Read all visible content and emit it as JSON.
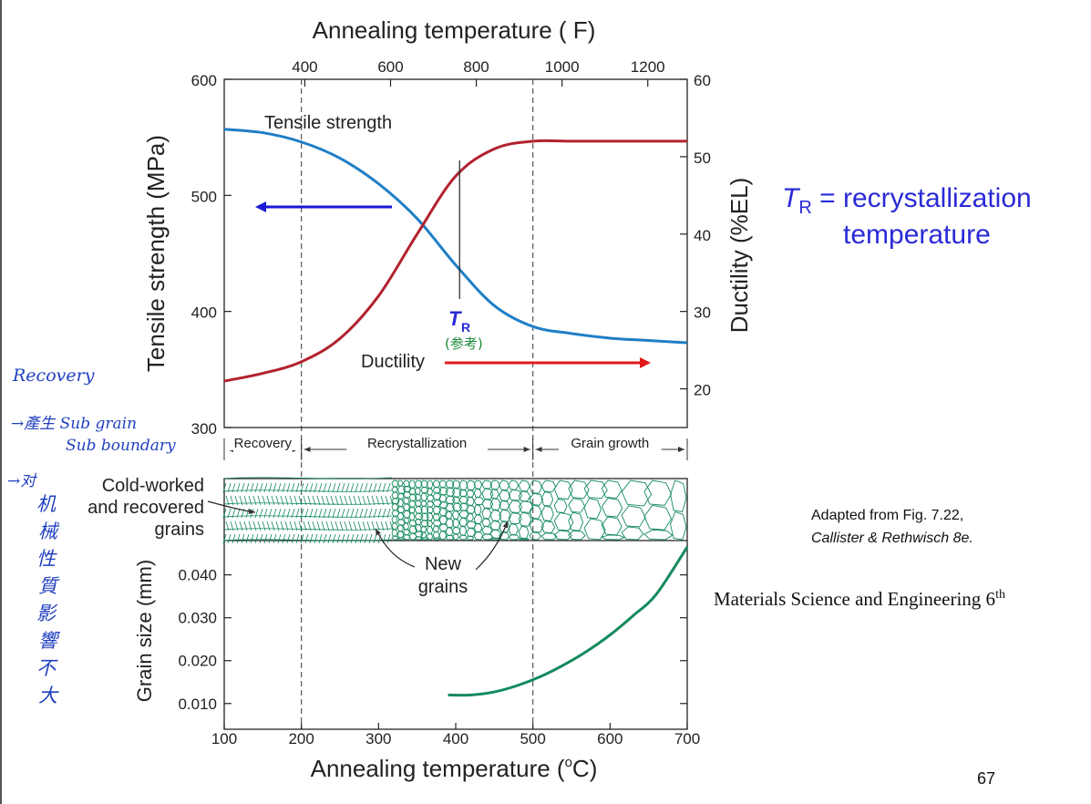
{
  "slide": {
    "tr_symbol": "T",
    "tr_subscript": "R",
    "tr_definition_line1": " = recrystallization",
    "tr_definition_line2": "temperature",
    "caption_line1": "Adapted from Fig. 7.22,",
    "caption_line2": "Callister & Rethwisch 8e.",
    "reference_text": "Materials Science and Engineering 6",
    "reference_sup": "th",
    "page_number": "67",
    "colors": {
      "title_blue": "#2a2ad8",
      "tensile": "#1f7fc6",
      "ductility": "#b2222e",
      "grain": "#138a5c",
      "handwriting_blue": "#1f3fbf",
      "handwriting_green": "#1a8a3a"
    }
  },
  "handwritten_notes": {
    "left_line1": "Recovery",
    "left_line2": "→產生 Sub grain",
    "left_line3": "Sub boundary",
    "left_line4": "→对",
    "left_vertical": [
      "机",
      "械",
      "性",
      "質",
      "影",
      "響",
      "不",
      "大"
    ],
    "tr_note": "(参考)"
  },
  "chart_data": {
    "type": "line",
    "top_xlabel": "Annealing temperature ( F)",
    "top_xticks": [
      "400",
      "600",
      "800",
      "1000",
      "1200"
    ],
    "xlabel": "Annealing temperature (°C)",
    "xlabel_prefix": "Annealing temperature (",
    "xlabel_degree": "o",
    "xlabel_suffix": "C)",
    "xticks": [
      "100",
      "200",
      "300",
      "400",
      "500",
      "600",
      "700"
    ],
    "xlim": [
      100,
      700
    ],
    "upper_panel": {
      "ylabel_left": "Tensile strength (MPa)",
      "ylim_left": [
        300,
        600
      ],
      "yticks_left": [
        "300",
        "400",
        "500",
        "600"
      ],
      "ylabel_right": "Ductility (%EL)",
      "ylim_right": [
        15,
        60
      ],
      "yticks_right": [
        "20",
        "30",
        "40",
        "50",
        "60"
      ],
      "series": [
        {
          "name": "Tensile strength",
          "axis": "left",
          "x": [
            100,
            150,
            200,
            250,
            300,
            350,
            400,
            450,
            500,
            550,
            600,
            650,
            700
          ],
          "values": [
            557,
            554,
            546,
            532,
            510,
            480,
            440,
            405,
            387,
            381,
            377,
            375,
            373
          ]
        },
        {
          "name": "Ductility",
          "axis": "right",
          "x": [
            100,
            150,
            200,
            250,
            300,
            350,
            400,
            450,
            500,
            550,
            600,
            650,
            700
          ],
          "values": [
            21,
            22,
            23.5,
            26.5,
            32,
            40,
            47.5,
            51,
            52,
            52,
            52,
            52,
            52
          ]
        }
      ],
      "tr_marker_x": 405,
      "annotation_tr": "T",
      "annotation_tr_sub": "R"
    },
    "regions": [
      "Recovery",
      "Recrystallization",
      "Grain growth"
    ],
    "region_bounds": [
      100,
      200,
      500,
      700
    ],
    "microstructure_labels": {
      "cold_worked_line1": "Cold-worked",
      "cold_worked_line2": "and recovered",
      "cold_worked_line3": "grains",
      "new_grains_line1": "New",
      "new_grains_line2": "grains"
    },
    "lower_panel": {
      "ylabel": "Grain size (mm)",
      "ylim": [
        0.004,
        0.048
      ],
      "yticks": [
        "0.010",
        "0.020",
        "0.030",
        "0.040"
      ],
      "series": [
        {
          "name": "Grain size",
          "x": [
            390,
            420,
            450,
            480,
            510,
            540,
            570,
            600,
            630,
            660,
            700
          ],
          "values": [
            0.012,
            0.012,
            0.0127,
            0.0142,
            0.0163,
            0.019,
            0.0222,
            0.026,
            0.0305,
            0.0355,
            0.0465
          ]
        }
      ]
    }
  }
}
